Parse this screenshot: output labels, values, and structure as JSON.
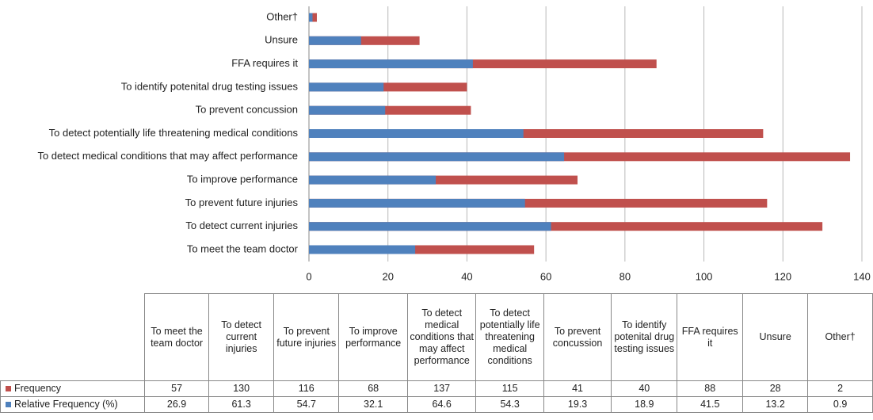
{
  "chart_data": {
    "type": "bar",
    "orientation": "horizontal",
    "categories": [
      "To meet the team doctor",
      "To detect current injuries",
      "To prevent future injuries",
      "To improve performance",
      "To detect medical conditions that may affect performance",
      "To detect potentially life threatening medical conditions",
      "To prevent concussion",
      "To identify potenital drug testing issues",
      "FFA requires it",
      "Unsure",
      "Other†"
    ],
    "series": [
      {
        "name": "Frequency",
        "color": "#c0504d",
        "values": [
          57,
          130,
          116,
          68,
          137,
          115,
          41,
          40,
          88,
          28,
          2
        ]
      },
      {
        "name": "Relative Frequency (%)",
        "color": "#4f81bd",
        "values": [
          26.9,
          61.3,
          54.7,
          32.1,
          64.6,
          54.3,
          19.3,
          18.9,
          41.5,
          13.2,
          0.9
        ]
      }
    ],
    "xlim": [
      0,
      140
    ],
    "xticks": [
      0,
      20,
      40,
      60,
      80,
      100,
      120,
      140
    ],
    "grid": true,
    "data_table": true
  }
}
